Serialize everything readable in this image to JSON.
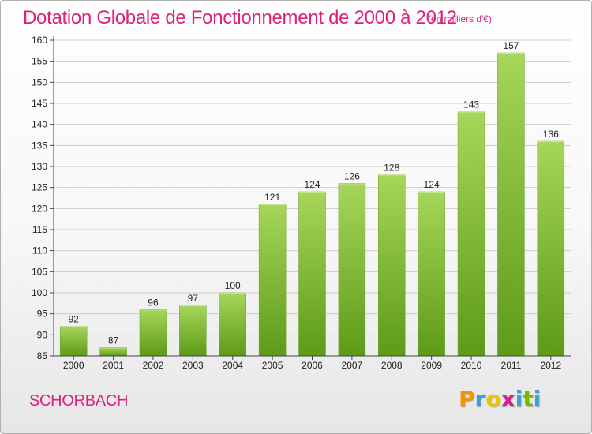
{
  "title": "Dotation Globale de Fonctionnement de 2000 à 2012",
  "subtitle": "(en milliers d'€)",
  "commune": "SCHORBACH",
  "logo": {
    "letters": [
      "P",
      "r",
      "o",
      "x",
      "i",
      "t",
      "i"
    ],
    "colors": [
      "#f29400",
      "#3aa0d8",
      "#e8c800",
      "#d8208a",
      "#3aa0d8",
      "#7ab800",
      "#3aa0d8"
    ]
  },
  "colors": {
    "bar_top": "#a6d65a",
    "bar_bottom": "#5e9a18",
    "grid": "#cccccc",
    "axis": "#444444",
    "text": "#222222",
    "accent": "#e0207a"
  },
  "chart_data": {
    "type": "bar",
    "categories": [
      "2000",
      "2001",
      "2002",
      "2003",
      "2004",
      "2005",
      "2006",
      "2007",
      "2008",
      "2009",
      "2010",
      "2011",
      "2012"
    ],
    "values": [
      92,
      87,
      96,
      97,
      100,
      121,
      124,
      126,
      128,
      124,
      143,
      157,
      136
    ],
    "ylim": [
      85,
      160
    ],
    "yticks": [
      85,
      90,
      95,
      100,
      105,
      110,
      115,
      120,
      125,
      130,
      135,
      140,
      145,
      150,
      155,
      160
    ],
    "grid": true,
    "xlabel": "",
    "ylabel": ""
  }
}
